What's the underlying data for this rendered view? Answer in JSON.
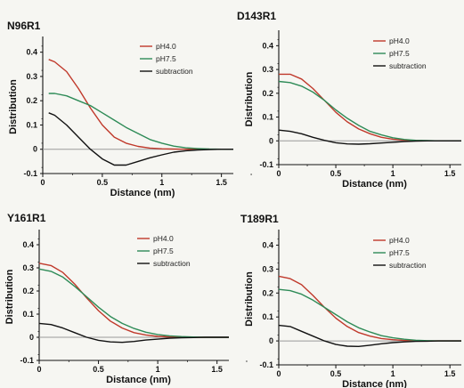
{
  "chart_data": [
    {
      "type": "line",
      "title": "N96R1",
      "xlabel": "Distance (nm)",
      "ylabel": "Distribution",
      "xlim": [
        0,
        1.6
      ],
      "ylim": [
        -0.1,
        0.45
      ],
      "xticks": [
        "0",
        "0.5",
        "1",
        "1.5"
      ],
      "yticks": [
        "-0.1",
        "0",
        "0.1",
        "0.2",
        "0.3",
        "0.4"
      ],
      "ytick_values": [
        -0.1,
        0,
        0.1,
        0.2,
        0.3,
        0.4
      ],
      "legend_position": "top-right",
      "series": [
        {
          "name": "pH4.0",
          "color": "#c0392b",
          "x": [
            0.05,
            0.1,
            0.2,
            0.3,
            0.4,
            0.5,
            0.6,
            0.7,
            0.8,
            0.9,
            1.0,
            1.1,
            1.2,
            1.3,
            1.4,
            1.5,
            1.6
          ],
          "y": [
            0.37,
            0.36,
            0.32,
            0.25,
            0.17,
            0.1,
            0.05,
            0.025,
            0.012,
            0.005,
            0.002,
            0.001,
            0,
            0,
            0,
            0,
            0
          ]
        },
        {
          "name": "pH7.5",
          "color": "#2e8b57",
          "x": [
            0.05,
            0.1,
            0.2,
            0.3,
            0.4,
            0.5,
            0.6,
            0.7,
            0.8,
            0.9,
            1.0,
            1.1,
            1.2,
            1.3,
            1.4,
            1.5,
            1.6
          ],
          "y": [
            0.23,
            0.23,
            0.22,
            0.2,
            0.18,
            0.15,
            0.12,
            0.09,
            0.065,
            0.04,
            0.025,
            0.013,
            0.006,
            0.003,
            0.001,
            0,
            0
          ]
        },
        {
          "name": "subtraction",
          "color": "#111111",
          "x": [
            0.05,
            0.1,
            0.2,
            0.3,
            0.4,
            0.5,
            0.6,
            0.7,
            0.8,
            0.9,
            1.0,
            1.1,
            1.2,
            1.3,
            1.4,
            1.5,
            1.6
          ],
          "y": [
            0.15,
            0.14,
            0.1,
            0.05,
            0.0,
            -0.04,
            -0.065,
            -0.065,
            -0.05,
            -0.035,
            -0.023,
            -0.012,
            -0.006,
            -0.003,
            -0.001,
            0,
            0
          ]
        }
      ]
    },
    {
      "type": "line",
      "title": "D143R1",
      "xlabel": "Distance (nm)",
      "ylabel": "Distribution",
      "xlim": [
        0,
        1.6
      ],
      "ylim": [
        -0.1,
        0.45
      ],
      "xticks": [
        "0",
        "0.5",
        "1",
        "1.5"
      ],
      "yticks": [
        "-0.1",
        "0",
        "0.1",
        "0.2",
        "0.3",
        "0.4"
      ],
      "ytick_values": [
        -0.1,
        0,
        0.1,
        0.2,
        0.3,
        0.4
      ],
      "legend_position": "top-right",
      "series": [
        {
          "name": "pH4.0",
          "color": "#c0392b",
          "x": [
            0.0,
            0.1,
            0.2,
            0.3,
            0.4,
            0.5,
            0.6,
            0.7,
            0.8,
            0.9,
            1.0,
            1.1,
            1.2,
            1.3,
            1.4,
            1.5,
            1.6
          ],
          "y": [
            0.28,
            0.28,
            0.26,
            0.22,
            0.17,
            0.12,
            0.08,
            0.05,
            0.03,
            0.015,
            0.007,
            0.003,
            0.001,
            0,
            0,
            0,
            0
          ]
        },
        {
          "name": "pH7.5",
          "color": "#2e8b57",
          "x": [
            0.0,
            0.1,
            0.2,
            0.3,
            0.4,
            0.5,
            0.6,
            0.7,
            0.8,
            0.9,
            1.0,
            1.1,
            1.2,
            1.3,
            1.4,
            1.5,
            1.6
          ],
          "y": [
            0.25,
            0.245,
            0.23,
            0.205,
            0.17,
            0.13,
            0.095,
            0.065,
            0.04,
            0.025,
            0.013,
            0.006,
            0.002,
            0.001,
            0,
            0,
            0
          ]
        },
        {
          "name": "subtraction",
          "color": "#111111",
          "x": [
            0.0,
            0.1,
            0.2,
            0.3,
            0.4,
            0.5,
            0.6,
            0.7,
            0.8,
            0.9,
            1.0,
            1.1,
            1.2,
            1.3,
            1.4,
            1.5,
            1.6
          ],
          "y": [
            0.045,
            0.04,
            0.03,
            0.015,
            0.002,
            -0.008,
            -0.013,
            -0.014,
            -0.012,
            -0.009,
            -0.006,
            -0.003,
            -0.001,
            0,
            0,
            0,
            0
          ]
        }
      ]
    },
    {
      "type": "line",
      "title": "Y161R1",
      "xlabel": "Distance (nm)",
      "ylabel": "Distribution",
      "xlim": [
        0,
        1.6
      ],
      "ylim": [
        -0.1,
        0.45
      ],
      "xticks": [
        "0",
        "0.5",
        "1",
        "1.5"
      ],
      "yticks": [
        "-0.1",
        "0",
        "0.1",
        "0.2",
        "0.3",
        "0.4"
      ],
      "ytick_values": [
        -0.1,
        0,
        0.1,
        0.2,
        0.3,
        0.4
      ],
      "legend_position": "top-right",
      "series": [
        {
          "name": "pH4.0",
          "color": "#c0392b",
          "x": [
            0.0,
            0.1,
            0.2,
            0.3,
            0.4,
            0.5,
            0.6,
            0.7,
            0.8,
            0.9,
            1.0,
            1.1,
            1.2,
            1.3,
            1.4,
            1.5,
            1.6
          ],
          "y": [
            0.32,
            0.31,
            0.28,
            0.23,
            0.17,
            0.115,
            0.07,
            0.04,
            0.02,
            0.01,
            0.004,
            0.002,
            0.001,
            0,
            0,
            0,
            0
          ]
        },
        {
          "name": "pH7.5",
          "color": "#2e8b57",
          "x": [
            0.0,
            0.1,
            0.2,
            0.3,
            0.4,
            0.5,
            0.6,
            0.7,
            0.8,
            0.9,
            1.0,
            1.1,
            1.2,
            1.3,
            1.4,
            1.5,
            1.6
          ],
          "y": [
            0.295,
            0.285,
            0.26,
            0.22,
            0.175,
            0.13,
            0.09,
            0.06,
            0.038,
            0.022,
            0.012,
            0.006,
            0.003,
            0.001,
            0,
            0,
            0
          ]
        },
        {
          "name": "subtraction",
          "color": "#111111",
          "x": [
            0.0,
            0.1,
            0.2,
            0.3,
            0.4,
            0.5,
            0.6,
            0.7,
            0.8,
            0.9,
            1.0,
            1.1,
            1.2,
            1.3,
            1.4,
            1.5,
            1.6
          ],
          "y": [
            0.06,
            0.055,
            0.04,
            0.02,
            0.0,
            -0.013,
            -0.02,
            -0.022,
            -0.018,
            -0.012,
            -0.008,
            -0.004,
            -0.002,
            -0.001,
            0,
            0,
            0
          ]
        }
      ]
    },
    {
      "type": "line",
      "title": "T189R1",
      "xlabel": "Distance (nm)",
      "ylabel": "Distribution",
      "xlim": [
        0,
        1.6
      ],
      "ylim": [
        -0.1,
        0.45
      ],
      "xticks": [
        "0",
        "0.5",
        "1",
        "1.5"
      ],
      "yticks": [
        "-0.1",
        "0",
        "0.1",
        "0.2",
        "0.3",
        "0.4"
      ],
      "ytick_values": [
        -0.1,
        0,
        0.1,
        0.2,
        0.3,
        0.4
      ],
      "legend_position": "top-right",
      "series": [
        {
          "name": "pH4.0",
          "color": "#c0392b",
          "x": [
            0.0,
            0.1,
            0.2,
            0.3,
            0.4,
            0.5,
            0.6,
            0.7,
            0.8,
            0.9,
            1.0,
            1.1,
            1.2,
            1.3,
            1.4,
            1.5,
            1.6
          ],
          "y": [
            0.27,
            0.26,
            0.235,
            0.19,
            0.14,
            0.095,
            0.06,
            0.035,
            0.02,
            0.01,
            0.005,
            0.002,
            0.001,
            0,
            0,
            0,
            0
          ]
        },
        {
          "name": "pH7.5",
          "color": "#2e8b57",
          "x": [
            0.0,
            0.1,
            0.2,
            0.3,
            0.4,
            0.5,
            0.6,
            0.7,
            0.8,
            0.9,
            1.0,
            1.1,
            1.2,
            1.3,
            1.4,
            1.5,
            1.6
          ],
          "y": [
            0.215,
            0.21,
            0.195,
            0.17,
            0.14,
            0.11,
            0.08,
            0.055,
            0.037,
            0.022,
            0.013,
            0.007,
            0.003,
            0.001,
            0,
            0,
            0
          ]
        },
        {
          "name": "subtraction",
          "color": "#111111",
          "x": [
            0.0,
            0.1,
            0.2,
            0.3,
            0.4,
            0.5,
            0.6,
            0.7,
            0.8,
            0.9,
            1.0,
            1.1,
            1.2,
            1.3,
            1.4,
            1.5,
            1.6
          ],
          "y": [
            0.065,
            0.06,
            0.04,
            0.02,
            -0.0,
            -0.015,
            -0.022,
            -0.023,
            -0.018,
            -0.012,
            -0.007,
            -0.004,
            -0.002,
            -0.001,
            0,
            0,
            0
          ]
        }
      ]
    }
  ]
}
